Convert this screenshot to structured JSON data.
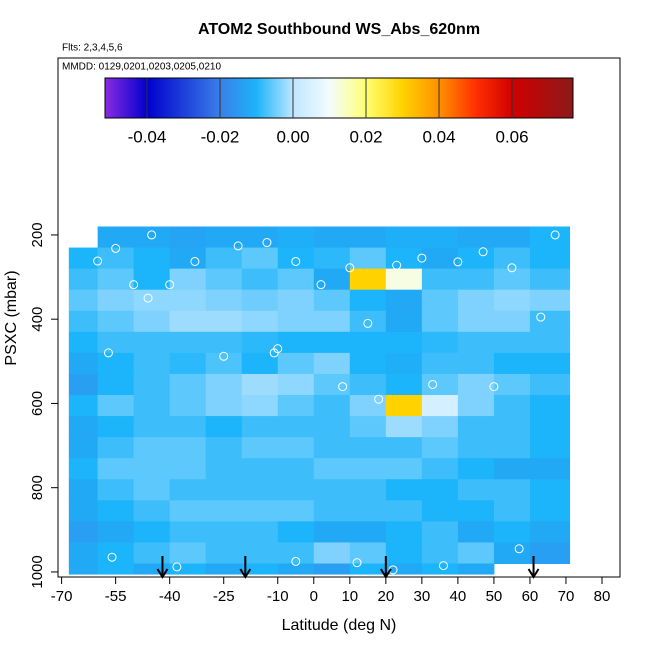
{
  "chart_data": {
    "type": "heatmap",
    "title": "ATOM2 Southbound WS_Abs_620nm",
    "notes": [
      "Flts: 2,3,4,5,6",
      "MMDD: 0129,0201,0203,0205,0210"
    ],
    "xlabel": "Latitude (deg N)",
    "ylabel": "PSXC (mbar)",
    "xlim": [
      -71,
      85
    ],
    "ylim": [
      1012,
      -220
    ],
    "xticks": [
      -70,
      -55,
      -40,
      -25,
      -10,
      0,
      10,
      20,
      30,
      40,
      50,
      60,
      70,
      80
    ],
    "yticks": [
      200,
      400,
      600,
      800,
      1000
    ],
    "x_edges": [
      -68,
      -60,
      -50,
      -40,
      -30,
      -20,
      -10,
      0,
      10,
      20,
      30,
      40,
      50,
      60,
      71
    ],
    "y_edges": [
      180,
      230,
      280,
      330,
      380,
      430,
      480,
      530,
      580,
      630,
      680,
      730,
      780,
      830,
      880,
      930,
      980,
      1005
    ],
    "values": [
      [
        null,
        -0.012,
        -0.012,
        -0.013,
        -0.012,
        -0.012,
        -0.011,
        -0.012,
        -0.012,
        -0.011,
        -0.011,
        -0.012,
        -0.012,
        -0.01
      ],
      [
        -0.01,
        -0.008,
        -0.01,
        -0.012,
        -0.008,
        -0.006,
        -0.01,
        -0.009,
        -0.006,
        -0.01,
        -0.012,
        -0.01,
        -0.008,
        -0.01
      ],
      [
        -0.008,
        -0.006,
        -0.01,
        -0.004,
        -0.006,
        -0.008,
        -0.006,
        -0.012,
        0.03,
        0.012,
        -0.008,
        -0.008,
        -0.006,
        -0.008
      ],
      [
        -0.006,
        -0.004,
        -0.003,
        -0.003,
        -0.004,
        -0.005,
        -0.004,
        -0.006,
        -0.01,
        -0.012,
        -0.006,
        -0.004,
        -0.003,
        -0.004
      ],
      [
        -0.008,
        -0.006,
        -0.004,
        -0.002,
        -0.002,
        -0.003,
        -0.004,
        -0.004,
        -0.008,
        -0.012,
        -0.006,
        -0.004,
        -0.004,
        -0.008
      ],
      [
        -0.01,
        -0.008,
        -0.008,
        -0.008,
        -0.008,
        -0.009,
        -0.01,
        -0.01,
        -0.01,
        -0.01,
        -0.009,
        -0.008,
        -0.008,
        -0.008
      ],
      [
        -0.012,
        -0.01,
        -0.008,
        -0.009,
        -0.007,
        -0.01,
        -0.006,
        -0.004,
        -0.01,
        -0.011,
        -0.008,
        -0.008,
        -0.01,
        -0.01
      ],
      [
        -0.014,
        -0.01,
        -0.008,
        -0.006,
        -0.004,
        -0.002,
        -0.003,
        -0.006,
        -0.008,
        -0.01,
        -0.006,
        -0.004,
        -0.006,
        -0.008
      ],
      [
        -0.01,
        -0.006,
        -0.008,
        -0.006,
        -0.004,
        -0.003,
        -0.006,
        -0.008,
        -0.004,
        0.03,
        0.004,
        -0.004,
        -0.008,
        -0.01
      ],
      [
        -0.012,
        -0.01,
        -0.008,
        -0.008,
        -0.01,
        -0.008,
        -0.008,
        -0.008,
        -0.006,
        -0.002,
        -0.004,
        -0.008,
        -0.008,
        -0.01
      ],
      [
        -0.012,
        -0.008,
        -0.006,
        -0.006,
        -0.008,
        -0.006,
        -0.006,
        -0.008,
        -0.008,
        -0.008,
        -0.006,
        -0.008,
        -0.008,
        -0.01
      ],
      [
        -0.01,
        -0.006,
        -0.006,
        -0.006,
        -0.008,
        -0.008,
        -0.008,
        -0.006,
        -0.006,
        -0.006,
        -0.008,
        -0.01,
        -0.012,
        -0.012
      ],
      [
        -0.012,
        -0.008,
        -0.006,
        -0.008,
        -0.008,
        -0.008,
        -0.008,
        -0.008,
        -0.008,
        -0.01,
        -0.01,
        -0.008,
        -0.008,
        -0.01
      ],
      [
        -0.012,
        -0.01,
        -0.008,
        -0.006,
        -0.006,
        -0.006,
        -0.006,
        -0.008,
        -0.008,
        -0.008,
        -0.01,
        -0.01,
        -0.008,
        -0.01
      ],
      [
        -0.014,
        -0.012,
        -0.01,
        -0.008,
        -0.008,
        -0.008,
        -0.01,
        -0.012,
        -0.012,
        -0.01,
        -0.008,
        -0.012,
        -0.01,
        -0.012
      ],
      [
        -0.012,
        -0.01,
        -0.008,
        -0.006,
        -0.008,
        -0.008,
        -0.008,
        -0.004,
        -0.006,
        -0.01,
        -0.008,
        -0.006,
        -0.012,
        -0.014
      ],
      [
        -0.012,
        -0.01,
        -0.012,
        -0.01,
        -0.012,
        -0.01,
        -0.012,
        -0.014,
        -0.01,
        -0.012,
        -0.01,
        -0.012,
        null,
        null
      ]
    ],
    "colorscale": [
      [
        -0.0515,
        "#8a2be2"
      ],
      [
        -0.04,
        "#0000cd"
      ],
      [
        -0.02,
        "#3a7fe8"
      ],
      [
        -0.01,
        "#1cb4fa"
      ],
      [
        0,
        "#bfe6ff"
      ],
      [
        0.01,
        "#f4fcff"
      ],
      [
        0.02,
        "#ffff70"
      ],
      [
        0.03,
        "#ffd200"
      ],
      [
        0.04,
        "#ff9000"
      ],
      [
        0.05,
        "#ff3000"
      ],
      [
        0.06,
        "#d00000"
      ],
      [
        0.0767,
        "#8b1a1a"
      ]
    ],
    "colorbar_ticks": [
      -0.04,
      -0.02,
      {
        "value": 0,
        "label": "0.00"
      },
      0.02,
      0.04,
      0.06
    ],
    "points": {
      "x": [
        -60,
        -55,
        -50,
        -45,
        -40,
        -33,
        -21,
        -13,
        -11,
        -5,
        2,
        10,
        15,
        23,
        30,
        40,
        47,
        55,
        63,
        67,
        -57,
        -46,
        -25,
        -10,
        8,
        18,
        33,
        50,
        -56,
        -38,
        -5,
        12,
        22,
        36,
        57
      ],
      "y": [
        262,
        232,
        318,
        200,
        318,
        263,
        226,
        218,
        480,
        263,
        318,
        278,
        410,
        272,
        255,
        264,
        240,
        278,
        395,
        200,
        480,
        350,
        488,
        470,
        560,
        590,
        555,
        560,
        965,
        988,
        975,
        978,
        995,
        985,
        945
      ]
    },
    "arrows_x": [
      -42,
      -19,
      20,
      61
    ]
  }
}
